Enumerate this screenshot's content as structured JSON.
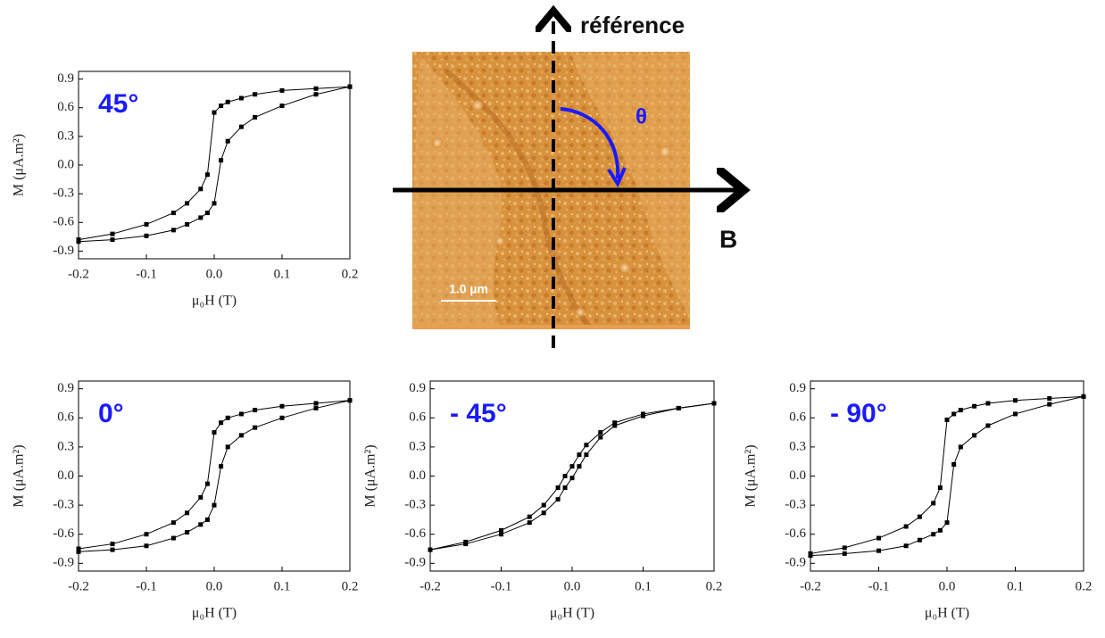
{
  "chart_data": [
    {
      "type": "line",
      "annotation": "45°",
      "x_label": "μ₀H (T)",
      "y_label": "M (μA.m²)",
      "x": [
        -0.2,
        -0.15,
        -0.1,
        -0.06,
        -0.04,
        -0.02,
        -0.01,
        0,
        0.01,
        0.02,
        0.04,
        0.06,
        0.1,
        0.15,
        0.2
      ],
      "series": [
        {
          "color": "#000000",
          "values": [
            -0.78,
            -0.72,
            -0.62,
            -0.5,
            -0.4,
            -0.25,
            -0.1,
            0.55,
            0.62,
            0.66,
            0.7,
            0.74,
            0.78,
            0.8,
            0.82
          ]
        },
        {
          "color": "#000000",
          "values": [
            -0.8,
            -0.78,
            -0.74,
            -0.68,
            -0.62,
            -0.55,
            -0.5,
            -0.4,
            0.05,
            0.25,
            0.4,
            0.5,
            0.62,
            0.74,
            0.82
          ]
        }
      ],
      "xlim": [
        -0.2,
        0.2
      ],
      "ylim": [
        -0.98,
        0.98
      ],
      "xticks": [
        -0.2,
        -0.1,
        {
          "value": 0,
          "label": "0.0"
        },
        0.1,
        0.2
      ],
      "yticks": [
        -0.9,
        -0.6,
        -0.3,
        {
          "value": 0,
          "label": "0.0"
        },
        0.3,
        0.6,
        0.9
      ]
    },
    {
      "type": "line",
      "annotation": "0°",
      "x_label": "μ₀H (T)",
      "y_label": "M (μA.m²)",
      "x": [
        -0.2,
        -0.15,
        -0.1,
        -0.06,
        -0.04,
        -0.02,
        -0.01,
        0,
        0.01,
        0.02,
        0.04,
        0.06,
        0.1,
        0.15,
        0.2
      ],
      "series": [
        {
          "color": "#000000",
          "values": [
            -0.75,
            -0.7,
            -0.6,
            -0.48,
            -0.38,
            -0.22,
            -0.08,
            0.45,
            0.55,
            0.6,
            0.64,
            0.68,
            0.72,
            0.75,
            0.78
          ]
        },
        {
          "color": "#000000",
          "values": [
            -0.78,
            -0.76,
            -0.72,
            -0.64,
            -0.58,
            -0.5,
            -0.45,
            -0.3,
            0.1,
            0.3,
            0.42,
            0.5,
            0.6,
            0.7,
            0.78
          ]
        }
      ],
      "xlim": [
        -0.2,
        0.2
      ],
      "ylim": [
        -0.98,
        0.98
      ],
      "xticks": [
        -0.2,
        -0.1,
        {
          "value": 0,
          "label": "0.0"
        },
        0.1,
        0.2
      ],
      "yticks": [
        -0.9,
        -0.6,
        -0.3,
        {
          "value": 0,
          "label": "0.0"
        },
        0.3,
        0.6,
        0.9
      ]
    },
    {
      "type": "line",
      "annotation": "- 45°",
      "x_label": "μ₀H (T)",
      "y_label": "M (μA.m²)",
      "x": [
        -0.2,
        -0.15,
        -0.1,
        -0.06,
        -0.04,
        -0.02,
        -0.01,
        0,
        0.01,
        0.02,
        0.04,
        0.06,
        0.1,
        0.15,
        0.2
      ],
      "series": [
        {
          "color": "#000000",
          "values": [
            -0.76,
            -0.68,
            -0.56,
            -0.42,
            -0.3,
            -0.12,
            0.0,
            0.1,
            0.22,
            0.32,
            0.45,
            0.55,
            0.64,
            0.7,
            0.75
          ]
        },
        {
          "color": "#000000",
          "values": [
            -0.76,
            -0.7,
            -0.6,
            -0.48,
            -0.38,
            -0.24,
            -0.12,
            -0.02,
            0.1,
            0.22,
            0.4,
            0.52,
            0.62,
            0.7,
            0.75
          ]
        }
      ],
      "xlim": [
        -0.2,
        0.2
      ],
      "ylim": [
        -0.98,
        0.98
      ],
      "xticks": [
        -0.2,
        -0.1,
        {
          "value": 0,
          "label": "0.0"
        },
        0.1,
        0.2
      ],
      "yticks": [
        -0.9,
        -0.6,
        -0.3,
        {
          "value": 0,
          "label": "0.0"
        },
        0.3,
        0.6,
        0.9
      ]
    },
    {
      "type": "line",
      "annotation": "- 90°",
      "x_label": "μ₀H (T)",
      "y_label": "M (μA.m²)",
      "x": [
        -0.2,
        -0.15,
        -0.1,
        -0.06,
        -0.04,
        -0.02,
        -0.01,
        0,
        0.01,
        0.02,
        0.04,
        0.06,
        0.1,
        0.15,
        0.2
      ],
      "series": [
        {
          "color": "#000000",
          "values": [
            -0.8,
            -0.74,
            -0.64,
            -0.52,
            -0.42,
            -0.28,
            -0.12,
            0.58,
            0.64,
            0.68,
            0.72,
            0.75,
            0.78,
            0.8,
            0.82
          ]
        },
        {
          "color": "#000000",
          "values": [
            -0.82,
            -0.8,
            -0.77,
            -0.72,
            -0.66,
            -0.6,
            -0.56,
            -0.48,
            0.12,
            0.3,
            0.42,
            0.52,
            0.64,
            0.74,
            0.82
          ]
        }
      ],
      "xlim": [
        -0.2,
        0.2
      ],
      "ylim": [
        -0.98,
        0.98
      ],
      "xticks": [
        -0.2,
        -0.1,
        {
          "value": 0,
          "label": "0.0"
        },
        0.1,
        0.2
      ],
      "yticks": [
        -0.9,
        -0.6,
        -0.3,
        {
          "value": 0,
          "label": "0.0"
        },
        0.3,
        0.6,
        0.9
      ]
    }
  ],
  "inset": {
    "reference": "référence",
    "theta": "θ",
    "field": "B",
    "scale_bar": "1.0 µm"
  }
}
